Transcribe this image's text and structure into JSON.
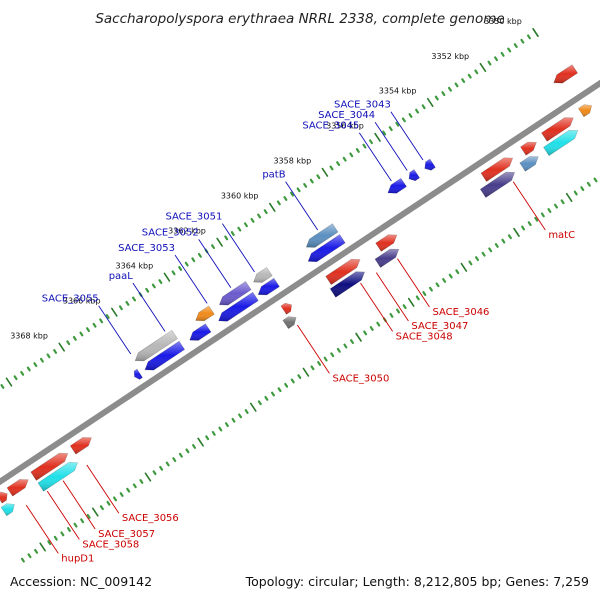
{
  "title": "Saccharopolyspora erythraea NRRL 2338, complete genome",
  "footer": {
    "accession": "Accession: NC_009142",
    "summary": "Topology: circular; Length: 8,212,805 bp; Genes: 7,259"
  },
  "colors": {
    "background": "#ffffff",
    "backbone": "#8c8c8c",
    "tick_major": "#2b7a2b",
    "tick_minor": "#3f9a3f",
    "label_plus": "#1010b8",
    "label_minus": "#cc0000",
    "callout_plus": "#1010b8",
    "callout_minus": "#cc0000"
  },
  "ticks": [
    {
      "label": "3350 kbp",
      "kbp": 3350
    },
    {
      "label": "3352 kbp",
      "kbp": 3352
    },
    {
      "label": "3354 kbp",
      "kbp": 3354
    },
    {
      "label": "3356 kbp",
      "kbp": 3356
    },
    {
      "label": "3358 kbp",
      "kbp": 3358
    },
    {
      "label": "3360 kbp",
      "kbp": 3360
    },
    {
      "label": "3362 kbp",
      "kbp": 3362
    },
    {
      "label": "3364 kbp",
      "kbp": 3364
    },
    {
      "label": "3366 kbp",
      "kbp": 3366
    },
    {
      "label": "3368 kbp",
      "kbp": 3368
    }
  ],
  "plus_labels": [
    {
      "label": "SACE_3043",
      "gene_kbp": 3355.2
    },
    {
      "label": "SACE_3044",
      "gene_kbp": 3355.8
    },
    {
      "label": "SACE_3045",
      "gene_kbp": 3356.4
    },
    {
      "label": "patB",
      "gene_kbp": 3359.2
    },
    {
      "label": "SACE_3051",
      "gene_kbp": 3361.6
    },
    {
      "label": "SACE_3052",
      "gene_kbp": 3362.5
    },
    {
      "label": "SACE_3053",
      "gene_kbp": 3363.4
    },
    {
      "label": "paaL",
      "gene_kbp": 3365.0
    },
    {
      "label": "SACE_3055",
      "gene_kbp": 3366.3
    }
  ],
  "minus_labels": [
    {
      "label": "matC",
      "gene_kbp": 3353.2
    },
    {
      "label": "SACE_3046",
      "gene_kbp": 3357.6
    },
    {
      "label": "SACE_3047",
      "gene_kbp": 3358.4
    },
    {
      "label": "SACE_3048",
      "gene_kbp": 3359.0
    },
    {
      "label": "SACE_3050",
      "gene_kbp": 3361.4
    },
    {
      "label": "SACE_3056",
      "gene_kbp": 3369.4
    },
    {
      "label": "SACE_3057",
      "gene_kbp": 3370.3
    },
    {
      "label": "SACE_3058",
      "gene_kbp": 3370.9
    },
    {
      "label": "hupD1",
      "gene_kbp": 3371.7
    }
  ],
  "genes": [
    {
      "strand": "+",
      "row": "outer",
      "start": 3349.6,
      "end": 3350.4,
      "color": "#e0301f"
    },
    {
      "strand": "+",
      "row": "outer",
      "start": 3355.0,
      "end": 3355.3,
      "color": "#1a1ae6"
    },
    {
      "strand": "+",
      "row": "outer",
      "start": 3355.6,
      "end": 3355.9,
      "color": "#1a1ae6"
    },
    {
      "strand": "+",
      "row": "outer",
      "start": 3356.1,
      "end": 3356.7,
      "color": "#1a1ae6"
    },
    {
      "strand": "+",
      "row": "outer",
      "start": 3358.7,
      "end": 3359.8,
      "color": "#5b8fc0"
    },
    {
      "strand": "+",
      "row": "inner",
      "start": 3358.7,
      "end": 3360.0,
      "color": "#1a1ae6"
    },
    {
      "strand": "+",
      "row": "outer",
      "start": 3361.2,
      "end": 3361.8,
      "color": "#b8b8b8"
    },
    {
      "strand": "+",
      "row": "inner",
      "start": 3361.2,
      "end": 3361.9,
      "color": "#1a1ae6"
    },
    {
      "strand": "+",
      "row": "outer",
      "start": 3362.0,
      "end": 3363.1,
      "color": "#6a5acd"
    },
    {
      "strand": "+",
      "row": "inner",
      "start": 3362.0,
      "end": 3363.4,
      "color": "#1a1ae6"
    },
    {
      "strand": "+",
      "row": "outer",
      "start": 3363.4,
      "end": 3364.0,
      "color": "#f08a1a"
    },
    {
      "strand": "+",
      "row": "inner",
      "start": 3363.8,
      "end": 3364.5,
      "color": "#1a1ae6"
    },
    {
      "strand": "+",
      "row": "outer",
      "start": 3364.8,
      "end": 3366.3,
      "color": "#b8b8b8"
    },
    {
      "strand": "+",
      "row": "inner",
      "start": 3364.8,
      "end": 3366.2,
      "color": "#1a1ae6"
    },
    {
      "strand": "+",
      "row": "inner",
      "start": 3366.4,
      "end": 3366.6,
      "color": "#1a1ae6"
    },
    {
      "strand": "-",
      "row": "outer",
      "start": 3349.8,
      "end": 3350.2,
      "color": "#f08a1a"
    },
    {
      "strand": "-",
      "row": "outer",
      "start": 3350.5,
      "end": 3351.6,
      "color": "#e0301f"
    },
    {
      "strand": "-",
      "row": "inner",
      "start": 3350.6,
      "end": 3351.8,
      "color": "#20e0e8"
    },
    {
      "strand": "-",
      "row": "outer",
      "start": 3351.9,
      "end": 3352.4,
      "color": "#e0301f"
    },
    {
      "strand": "-",
      "row": "inner",
      "start": 3352.1,
      "end": 3352.7,
      "color": "#5b8fc0"
    },
    {
      "strand": "-",
      "row": "outer",
      "start": 3352.8,
      "end": 3353.9,
      "color": "#e0301f"
    },
    {
      "strand": "-",
      "row": "inner",
      "start": 3353.0,
      "end": 3354.2,
      "color": "#483d8b"
    },
    {
      "strand": "-",
      "row": "outer",
      "start": 3357.2,
      "end": 3357.9,
      "color": "#e0301f"
    },
    {
      "strand": "-",
      "row": "inner",
      "start": 3357.4,
      "end": 3358.2,
      "color": "#483d8b"
    },
    {
      "strand": "-",
      "row": "outer",
      "start": 3358.6,
      "end": 3359.8,
      "color": "#e0301f"
    },
    {
      "strand": "-",
      "row": "inner",
      "start": 3358.7,
      "end": 3359.9,
      "color": "#0e0e80"
    },
    {
      "strand": "-",
      "row": "outer",
      "start": 3361.2,
      "end": 3361.5,
      "color": "#e0301f"
    },
    {
      "strand": "-",
      "row": "inner",
      "start": 3361.3,
      "end": 3361.7,
      "color": "#707070"
    },
    {
      "strand": "-",
      "row": "outer",
      "start": 3368.8,
      "end": 3369.5,
      "color": "#e0301f"
    },
    {
      "strand": "-",
      "row": "outer",
      "start": 3369.7,
      "end": 3371.0,
      "color": "#e0301f"
    },
    {
      "strand": "-",
      "row": "inner",
      "start": 3369.6,
      "end": 3371.0,
      "color": "#20e0e8"
    },
    {
      "strand": "-",
      "row": "outer",
      "start": 3371.2,
      "end": 3371.9,
      "color": "#e0301f"
    },
    {
      "strand": "-",
      "row": "outer",
      "start": 3372.0,
      "end": 3372.3,
      "color": "#e0301f"
    },
    {
      "strand": "-",
      "row": "inner",
      "start": 3372.0,
      "end": 3372.4,
      "color": "#20e0e8"
    },
    {
      "strand": "-",
      "row": "outer",
      "start": 3372.5,
      "end": 3372.9,
      "color": "#e0301f"
    },
    {
      "strand": "-",
      "row": "inner",
      "start": 3372.6,
      "end": 3373.0,
      "color": "#20e0e8"
    }
  ]
}
